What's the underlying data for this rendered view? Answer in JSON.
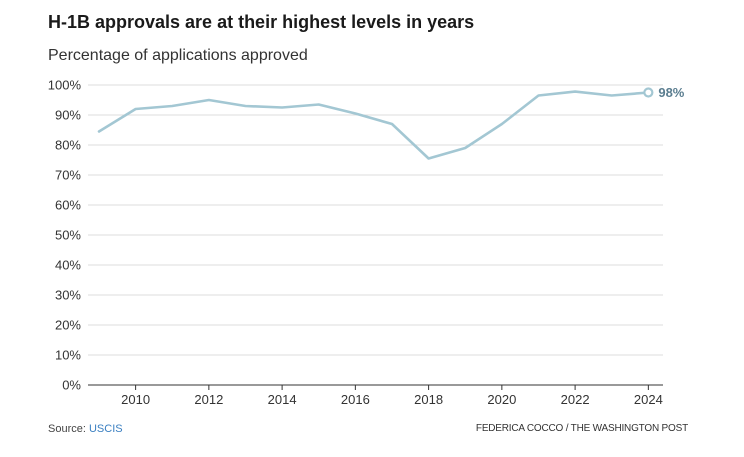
{
  "chart_data": {
    "type": "line",
    "title": "H-1B approvals are at their highest levels in years",
    "subtitle": "Percentage of applications approved",
    "x": [
      2009,
      2010,
      2011,
      2012,
      2013,
      2014,
      2015,
      2016,
      2017,
      2018,
      2019,
      2020,
      2021,
      2022,
      2023,
      2024
    ],
    "values": [
      84.5,
      92,
      93,
      95,
      93,
      92.5,
      93.5,
      90.5,
      87,
      75.5,
      79,
      87,
      96.5,
      97.8,
      96.5,
      97.5
    ],
    "xticks": [
      "2010",
      "2012",
      "2014",
      "2016",
      "2018",
      "2020",
      "2022",
      "2024"
    ],
    "yticks": [
      "0%",
      "10%",
      "20%",
      "30%",
      "40%",
      "50%",
      "60%",
      "70%",
      "80%",
      "90%",
      "100%"
    ],
    "xlim": [
      2008.7,
      2024.4
    ],
    "ylim": [
      0,
      100
    ],
    "end_label": "98%",
    "grid": true,
    "line_color": "#a3c7d3",
    "label_color": "#5a7d8f"
  },
  "footer": {
    "source_prefix": "Source: ",
    "source_link": "USCIS",
    "credit": "FEDERICA COCCO / THE WASHINGTON POST"
  }
}
